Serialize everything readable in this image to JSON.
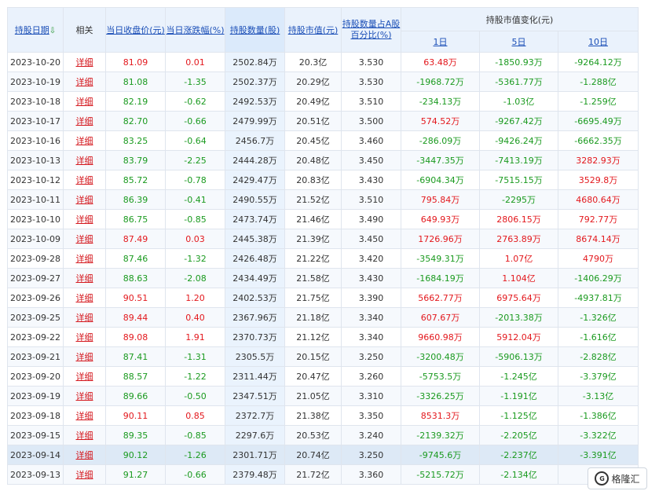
{
  "header": {
    "date": "持股日期",
    "related": "相关",
    "close": "当日收盘价(元)",
    "change": "当日涨跌幅(%)",
    "shares": "持股数量(股)",
    "value": "持股市值(元)",
    "pct_line1": "持股数量占A股",
    "pct_line2": "百分比(%)",
    "value_change": "持股市值变化(元)",
    "d1": "1日",
    "d5": "5日",
    "d10": "10日"
  },
  "rows": [
    {
      "date": "2023-10-20",
      "detail": "详细",
      "close": "81.09",
      "chg": "0.01",
      "shares": "2502.84万",
      "value": "20.3亿",
      "pct": "3.530",
      "d1": "63.48万",
      "d5": "-1850.93万",
      "d10": "-9264.12万"
    },
    {
      "date": "2023-10-19",
      "detail": "详细",
      "close": "81.08",
      "chg": "-1.35",
      "shares": "2502.37万",
      "value": "20.29亿",
      "pct": "3.530",
      "d1": "-1968.72万",
      "d5": "-5361.77万",
      "d10": "-1.288亿"
    },
    {
      "date": "2023-10-18",
      "detail": "详细",
      "close": "82.19",
      "chg": "-0.62",
      "shares": "2492.53万",
      "value": "20.49亿",
      "pct": "3.510",
      "d1": "-234.13万",
      "d5": "-1.03亿",
      "d10": "-1.259亿"
    },
    {
      "date": "2023-10-17",
      "detail": "详细",
      "close": "82.70",
      "chg": "-0.66",
      "shares": "2479.99万",
      "value": "20.51亿",
      "pct": "3.500",
      "d1": "574.52万",
      "d5": "-9267.42万",
      "d10": "-6695.49万"
    },
    {
      "date": "2023-10-16",
      "detail": "详细",
      "close": "83.25",
      "chg": "-0.64",
      "shares": "2456.7万",
      "value": "20.45亿",
      "pct": "3.460",
      "d1": "-286.09万",
      "d5": "-9426.24万",
      "d10": "-6662.35万"
    },
    {
      "date": "2023-10-13",
      "detail": "详细",
      "close": "83.79",
      "chg": "-2.25",
      "shares": "2444.28万",
      "value": "20.48亿",
      "pct": "3.450",
      "d1": "-3447.35万",
      "d5": "-7413.19万",
      "d10": "3282.93万"
    },
    {
      "date": "2023-10-12",
      "detail": "详细",
      "close": "85.72",
      "chg": "-0.78",
      "shares": "2429.47万",
      "value": "20.83亿",
      "pct": "3.430",
      "d1": "-6904.34万",
      "d5": "-7515.15万",
      "d10": "3529.8万"
    },
    {
      "date": "2023-10-11",
      "detail": "详细",
      "close": "86.39",
      "chg": "-0.41",
      "shares": "2490.55万",
      "value": "21.52亿",
      "pct": "3.510",
      "d1": "795.84万",
      "d5": "-2295万",
      "d10": "4680.64万"
    },
    {
      "date": "2023-10-10",
      "detail": "详细",
      "close": "86.75",
      "chg": "-0.85",
      "shares": "2473.74万",
      "value": "21.46亿",
      "pct": "3.490",
      "d1": "649.93万",
      "d5": "2806.15万",
      "d10": "792.77万"
    },
    {
      "date": "2023-10-09",
      "detail": "详细",
      "close": "87.49",
      "chg": "0.03",
      "shares": "2445.38万",
      "value": "21.39亿",
      "pct": "3.450",
      "d1": "1726.96万",
      "d5": "2763.89万",
      "d10": "8674.14万"
    },
    {
      "date": "2023-09-28",
      "detail": "详细",
      "close": "87.46",
      "chg": "-1.32",
      "shares": "2426.48万",
      "value": "21.22亿",
      "pct": "3.420",
      "d1": "-3549.31万",
      "d5": "1.07亿",
      "d10": "4790万"
    },
    {
      "date": "2023-09-27",
      "detail": "详细",
      "close": "88.63",
      "chg": "-2.08",
      "shares": "2434.49万",
      "value": "21.58亿",
      "pct": "3.430",
      "d1": "-1684.19万",
      "d5": "1.104亿",
      "d10": "-1406.29万"
    },
    {
      "date": "2023-09-26",
      "detail": "详细",
      "close": "90.51",
      "chg": "1.20",
      "shares": "2402.53万",
      "value": "21.75亿",
      "pct": "3.390",
      "d1": "5662.77万",
      "d5": "6975.64万",
      "d10": "-4937.81万"
    },
    {
      "date": "2023-09-25",
      "detail": "详细",
      "close": "89.44",
      "chg": "0.40",
      "shares": "2367.96万",
      "value": "21.18亿",
      "pct": "3.340",
      "d1": "607.67万",
      "d5": "-2013.38万",
      "d10": "-1.326亿"
    },
    {
      "date": "2023-09-22",
      "detail": "详细",
      "close": "89.08",
      "chg": "1.91",
      "shares": "2370.73万",
      "value": "21.12亿",
      "pct": "3.340",
      "d1": "9660.98万",
      "d5": "5912.04万",
      "d10": "-1.616亿"
    },
    {
      "date": "2023-09-21",
      "detail": "详细",
      "close": "87.41",
      "chg": "-1.31",
      "shares": "2305.5万",
      "value": "20.15亿",
      "pct": "3.250",
      "d1": "-3200.48万",
      "d5": "-5906.13万",
      "d10": "-2.828亿"
    },
    {
      "date": "2023-09-20",
      "detail": "详细",
      "close": "88.57",
      "chg": "-1.22",
      "shares": "2311.44万",
      "value": "20.47亿",
      "pct": "3.260",
      "d1": "-5753.5万",
      "d5": "-1.245亿",
      "d10": "-3.379亿"
    },
    {
      "date": "2023-09-19",
      "detail": "详细",
      "close": "89.66",
      "chg": "-0.50",
      "shares": "2347.51万",
      "value": "21.05亿",
      "pct": "3.310",
      "d1": "-3326.25万",
      "d5": "-1.191亿",
      "d10": "-3.13亿"
    },
    {
      "date": "2023-09-18",
      "detail": "详细",
      "close": "90.11",
      "chg": "0.85",
      "shares": "2372.7万",
      "value": "21.38亿",
      "pct": "3.350",
      "d1": "8531.3万",
      "d5": "-1.125亿",
      "d10": "-1.386亿"
    },
    {
      "date": "2023-09-15",
      "detail": "详细",
      "close": "89.35",
      "chg": "-0.85",
      "shares": "2297.6万",
      "value": "20.53亿",
      "pct": "3.240",
      "d1": "-2139.32万",
      "d5": "-2.205亿",
      "d10": "-3.322亿"
    },
    {
      "date": "2023-09-14",
      "detail": "详细",
      "close": "90.12",
      "chg": "-1.26",
      "shares": "2301.71万",
      "value": "20.74亿",
      "pct": "3.250",
      "d1": "-9745.6万",
      "d5": "-2.237亿",
      "d10": "-3.391亿"
    },
    {
      "date": "2023-09-13",
      "detail": "详细",
      "close": "91.27",
      "chg": "-0.66",
      "shares": "2379.48万",
      "value": "21.72亿",
      "pct": "3.360",
      "d1": "-5215.72万",
      "d5": "-2.134亿",
      "d10": "-2..."
    }
  ],
  "selected_row": 20,
  "watermark_logo": "格隆汇",
  "colors": {
    "up": "#e3181d",
    "down": "#1a9a1f",
    "link": "#1b4fb7",
    "detail": "#d4151b",
    "header_bg": "#eaf2fc"
  }
}
